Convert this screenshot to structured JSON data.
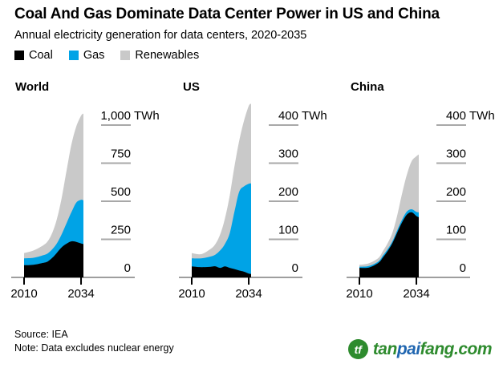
{
  "header": {
    "title": "Coal And Gas Dominate Data Center Power in US and China",
    "subtitle": "Annual electricity generation for data centers, 2020-2035"
  },
  "legend": {
    "items": [
      {
        "label": "Coal",
        "color": "#000000"
      },
      {
        "label": "Gas",
        "color": "#00a3e6"
      },
      {
        "label": "Renewables",
        "color": "#c9c9c9"
      }
    ]
  },
  "chart_data": [
    {
      "type": "area",
      "stacked": true,
      "title": "World",
      "unit": "TWh",
      "x_range": [
        2010,
        2035
      ],
      "x_ticks": [
        {
          "year": 2010,
          "label": "2010"
        },
        {
          "year": 2034,
          "label": "2034"
        }
      ],
      "years": [
        2010,
        2014,
        2018,
        2020,
        2022,
        2024,
        2026,
        2028,
        2030,
        2032,
        2034,
        2035
      ],
      "y_ticks": [
        0,
        250,
        500,
        750,
        1000
      ],
      "y_max": 1000,
      "series": [
        {
          "name": "Coal",
          "color": "#000000",
          "values": [
            80,
            83,
            95,
            105,
            130,
            165,
            200,
            222,
            237,
            233,
            223,
            219
          ]
        },
        {
          "name": "Gas",
          "color": "#00a3e6",
          "values": [
            45,
            46,
            50,
            53,
            57,
            63,
            89,
            138,
            193,
            258,
            286,
            287
          ]
        },
        {
          "name": "Renewables",
          "color": "#c9c9c9",
          "values": [
            35,
            48,
            65,
            80,
            110,
            165,
            246,
            351,
            447,
            500,
            552,
            570
          ]
        }
      ]
    },
    {
      "type": "area",
      "stacked": true,
      "title": "US",
      "unit": "TWh",
      "x_range": [
        2010,
        2035
      ],
      "x_ticks": [
        {
          "year": 2010,
          "label": "2010"
        },
        {
          "year": 2034,
          "label": "2034"
        }
      ],
      "years": [
        2010,
        2014,
        2018,
        2020,
        2022,
        2024,
        2026,
        2028,
        2030,
        2032,
        2034,
        2035
      ],
      "y_ticks": [
        0,
        100,
        200,
        300,
        400
      ],
      "y_max": 400,
      "series": [
        {
          "name": "Coal",
          "color": "#000000",
          "values": [
            29,
            27,
            28,
            29,
            25,
            29,
            25,
            22,
            18,
            15,
            10,
            9
          ]
        },
        {
          "name": "Gas",
          "color": "#00a3e6",
          "values": [
            21,
            23,
            27,
            31,
            46,
            59,
            91,
            151,
            207,
            224,
            236,
            238
          ]
        },
        {
          "name": "Renewables",
          "color": "#c9c9c9",
          "values": [
            14,
            11,
            20,
            28,
            42,
            67,
            99,
            119,
            134,
            172,
            204,
            209
          ]
        }
      ]
    },
    {
      "type": "area",
      "stacked": true,
      "title": "China",
      "unit": "TWh",
      "x_range": [
        2010,
        2035
      ],
      "x_ticks": [
        {
          "year": 2010,
          "label": "2010"
        },
        {
          "year": 2034,
          "label": "2034"
        }
      ],
      "years": [
        2010,
        2014,
        2018,
        2020,
        2022,
        2024,
        2026,
        2028,
        2030,
        2032,
        2034,
        2035
      ],
      "y_ticks": [
        0,
        100,
        200,
        300,
        400
      ],
      "y_max": 400,
      "series": [
        {
          "name": "Coal",
          "color": "#000000",
          "values": [
            25,
            26,
            38,
            53,
            70,
            91,
            119,
            145,
            165,
            171,
            161,
            158
          ]
        },
        {
          "name": "Gas",
          "color": "#00a3e6",
          "values": [
            3,
            4,
            4,
            5,
            5,
            5,
            6,
            7,
            8,
            8,
            11,
            13
          ]
        },
        {
          "name": "Renewables",
          "color": "#c9c9c9",
          "values": [
            5,
            7,
            9,
            12,
            16,
            23,
            40,
            69,
            97,
            126,
            146,
            152
          ]
        }
      ]
    }
  ],
  "footer": {
    "source": "Source: IEA",
    "note": "Note: Data excludes nuclear energy"
  },
  "logo": {
    "icon": "tanpaifang-leaf-icon",
    "icon_glyph": "tf",
    "part1": "tan",
    "part2": "pai",
    "part3": "fang.com",
    "green": "#2e8b2e",
    "blue": "#2066b0"
  }
}
